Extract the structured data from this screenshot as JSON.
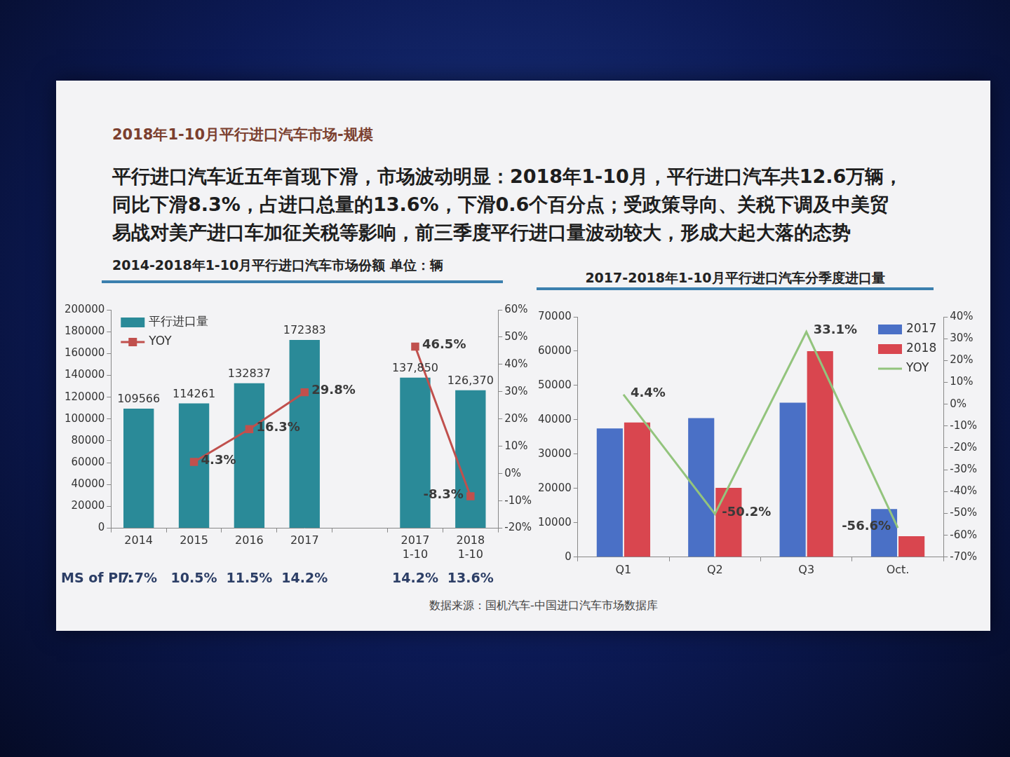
{
  "header": "2018年1-10月平行进口汽车市场-规模",
  "headline": [
    "平行进口汽车近五年首现下滑，市场波动明显：2018年1-10月，平行进口汽车共12.6万辆，",
    "同比下滑8.3%，占进口总量的13.6%，下滑0.6个百分点；受政策导向、关税下调及中美贸",
    "易战对美产进口车加征关税等影响，前三季度平行进口量波动较大，形成大起大落的态势"
  ],
  "source": "数据来源：国机汽车-中国进口汽车市场数据库",
  "chart_data": [
    {
      "type": "bar",
      "title": "2014-2018年1-10月平行进口汽车市场份额 单位：辆",
      "categories": [
        "2014",
        "2015",
        "2016",
        "2017",
        null,
        [
          "2017",
          "1-10"
        ],
        [
          "2018",
          "1-10"
        ]
      ],
      "series": [
        {
          "name": "平行进口量",
          "type": "bar",
          "color": "#2a8a98",
          "values": [
            109566,
            114261,
            132837,
            172383,
            null,
            137850,
            126370
          ],
          "value_labels": [
            "109566",
            "114261",
            "132837",
            "172383",
            null,
            "137,850",
            "126,370"
          ],
          "data_labels": true
        },
        {
          "name": "YOY",
          "type": "line",
          "color": "#c0504d",
          "marker": "square",
          "axis": "y2",
          "values": [
            null,
            4.3,
            16.3,
            29.8,
            null,
            46.5,
            -8.3
          ],
          "value_labels": [
            null,
            "4.3%",
            "16.3%",
            "29.8%",
            null,
            "46.5%",
            "-8.3%"
          ],
          "data_labels": true
        }
      ],
      "ylim": [
        0,
        200000
      ],
      "yticks": [
        0,
        20000,
        40000,
        60000,
        80000,
        100000,
        120000,
        140000,
        160000,
        180000,
        200000
      ],
      "y2lim": [
        -20,
        60
      ],
      "y2ticks": [
        {
          "value": -20,
          "label": "-20%"
        },
        {
          "value": -10,
          "label": "-10%"
        },
        {
          "value": 0,
          "label": "0%"
        },
        {
          "value": 10,
          "label": "10%"
        },
        {
          "value": 20,
          "label": "20%"
        },
        {
          "value": 30,
          "label": "30%"
        },
        {
          "value": 40,
          "label": "40%"
        },
        {
          "value": 50,
          "label": "50%"
        },
        {
          "value": 60,
          "label": "60%"
        }
      ],
      "grid": false,
      "legend": "top-left",
      "market_share": {
        "label": "MS of PI :",
        "values": [
          7.7,
          10.5,
          11.5,
          14.2,
          null,
          14.2,
          13.6
        ],
        "value_labels": [
          "7.7%",
          "10.5%",
          "11.5%",
          "14.2%",
          null,
          "14.2%",
          "13.6%"
        ]
      }
    },
    {
      "type": "bar",
      "title": "2017-2018年1-10月平行进口汽车分季度进口量",
      "categories": [
        "Q1",
        "Q2",
        "Q3",
        "Oct."
      ],
      "series": [
        {
          "name": "2017",
          "type": "bar",
          "color": "#4a70c6",
          "values": [
            37500,
            40500,
            45000,
            14000
          ]
        },
        {
          "name": "2018",
          "type": "bar",
          "color": "#d9464f",
          "values": [
            39200,
            20200,
            60000,
            6100
          ]
        },
        {
          "name": "YOY",
          "type": "line",
          "color": "#93c47d",
          "marker": "none",
          "axis": "y2",
          "values": [
            4.4,
            -50.2,
            33.1,
            -56.6
          ],
          "value_labels": [
            "4.4%",
            "-50.2%",
            "33.1%",
            "-56.6%"
          ],
          "data_labels": true
        }
      ],
      "ylim": [
        0,
        70000
      ],
      "yticks": [
        0,
        10000,
        20000,
        30000,
        40000,
        50000,
        60000,
        70000
      ],
      "y2lim": [
        -70,
        40
      ],
      "y2ticks": [
        {
          "value": -70,
          "label": "-70%"
        },
        {
          "value": -60,
          "label": "-60%"
        },
        {
          "value": -50,
          "label": "-50%"
        },
        {
          "value": -40,
          "label": "-40%"
        },
        {
          "value": -30,
          "label": "-30%"
        },
        {
          "value": -20,
          "label": "-20%"
        },
        {
          "value": -10,
          "label": "-10%"
        },
        {
          "value": 0,
          "label": "0%"
        },
        {
          "value": 10,
          "label": "10%"
        },
        {
          "value": 20,
          "label": "20%"
        },
        {
          "value": 30,
          "label": "30%"
        },
        {
          "value": 40,
          "label": "40%"
        }
      ],
      "grid": false,
      "legend": "top-right"
    }
  ]
}
